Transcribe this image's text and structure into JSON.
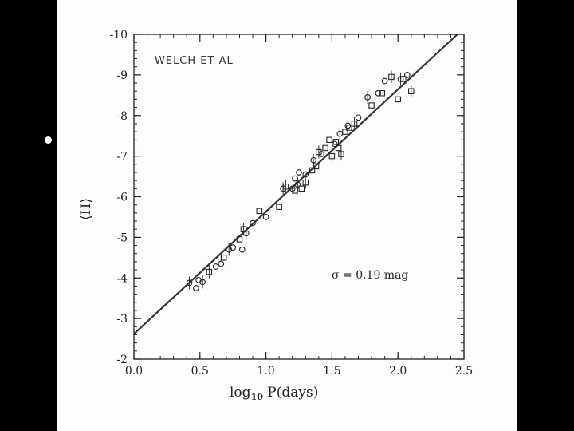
{
  "slide": {
    "bullet": "•"
  },
  "chart_data": {
    "type": "scatter",
    "title": "",
    "annotation_handwritten": "WELCH ET AL",
    "annotation_sigma": "σ =  0.19 mag",
    "xlabel_pre": "log",
    "xlabel_sub": "10",
    "xlabel_post": " P(days)",
    "ylabel": "⟨H⟩",
    "xlim": [
      0.0,
      2.5
    ],
    "ylim": [
      -2,
      -10
    ],
    "y_inverted": true,
    "grid": false,
    "x_ticks": [
      0.0,
      0.5,
      1.0,
      1.5,
      2.0,
      2.5
    ],
    "x_tick_labels": [
      "0.0",
      "0.5",
      "1.0",
      "1.5",
      "2.0",
      "2.5"
    ],
    "y_ticks": [
      -10,
      -9,
      -8,
      -7,
      -6,
      -5,
      -4,
      -3,
      -2
    ],
    "y_tick_labels": [
      "-10",
      "-9",
      "-8",
      "-7",
      "-6",
      "-5",
      "-4",
      "-3",
      "-2"
    ],
    "fit_line": {
      "x": [
        0.0,
        2.45
      ],
      "y": [
        -2.62,
        -10.0
      ]
    },
    "series": [
      {
        "marker": "circle",
        "points": [
          [
            0.42,
            -3.88
          ],
          [
            0.47,
            -3.75
          ],
          [
            0.49,
            -3.95
          ],
          [
            0.52,
            -3.9
          ],
          [
            0.62,
            -4.28
          ],
          [
            0.66,
            -4.35
          ],
          [
            0.72,
            -4.7
          ],
          [
            0.75,
            -4.75
          ],
          [
            0.82,
            -4.7
          ],
          [
            0.85,
            -5.1
          ],
          [
            0.9,
            -5.35
          ],
          [
            1.0,
            -5.5
          ],
          [
            1.13,
            -6.2
          ],
          [
            1.2,
            -6.2
          ],
          [
            1.22,
            -6.45
          ],
          [
            1.24,
            -6.3
          ],
          [
            1.25,
            -6.6
          ],
          [
            1.3,
            -6.55
          ],
          [
            1.36,
            -6.9
          ],
          [
            1.42,
            -7.05
          ],
          [
            1.52,
            -7.3
          ],
          [
            1.56,
            -7.55
          ],
          [
            1.62,
            -7.75
          ],
          [
            1.7,
            -7.95
          ],
          [
            1.77,
            -8.45
          ],
          [
            1.85,
            -8.55
          ],
          [
            1.9,
            -8.85
          ],
          [
            2.02,
            -8.9
          ],
          [
            2.07,
            -9.0
          ]
        ]
      },
      {
        "marker": "square",
        "points": [
          [
            0.57,
            -4.15
          ],
          [
            0.68,
            -4.5
          ],
          [
            0.8,
            -4.95
          ],
          [
            0.83,
            -5.2
          ],
          [
            0.95,
            -5.65
          ],
          [
            1.1,
            -5.75
          ],
          [
            1.15,
            -6.25
          ],
          [
            1.22,
            -6.15
          ],
          [
            1.27,
            -6.2
          ],
          [
            1.3,
            -6.35
          ],
          [
            1.35,
            -6.65
          ],
          [
            1.38,
            -6.75
          ],
          [
            1.4,
            -7.1
          ],
          [
            1.45,
            -7.2
          ],
          [
            1.48,
            -7.4
          ],
          [
            1.5,
            -7.0
          ],
          [
            1.53,
            -7.35
          ],
          [
            1.55,
            -7.2
          ],
          [
            1.57,
            -7.05
          ],
          [
            1.6,
            -7.6
          ],
          [
            1.63,
            -7.7
          ],
          [
            1.67,
            -7.8
          ],
          [
            1.8,
            -8.25
          ],
          [
            1.88,
            -8.55
          ],
          [
            1.95,
            -8.95
          ],
          [
            2.0,
            -8.4
          ],
          [
            2.04,
            -8.9
          ],
          [
            2.1,
            -8.6
          ]
        ]
      }
    ]
  }
}
